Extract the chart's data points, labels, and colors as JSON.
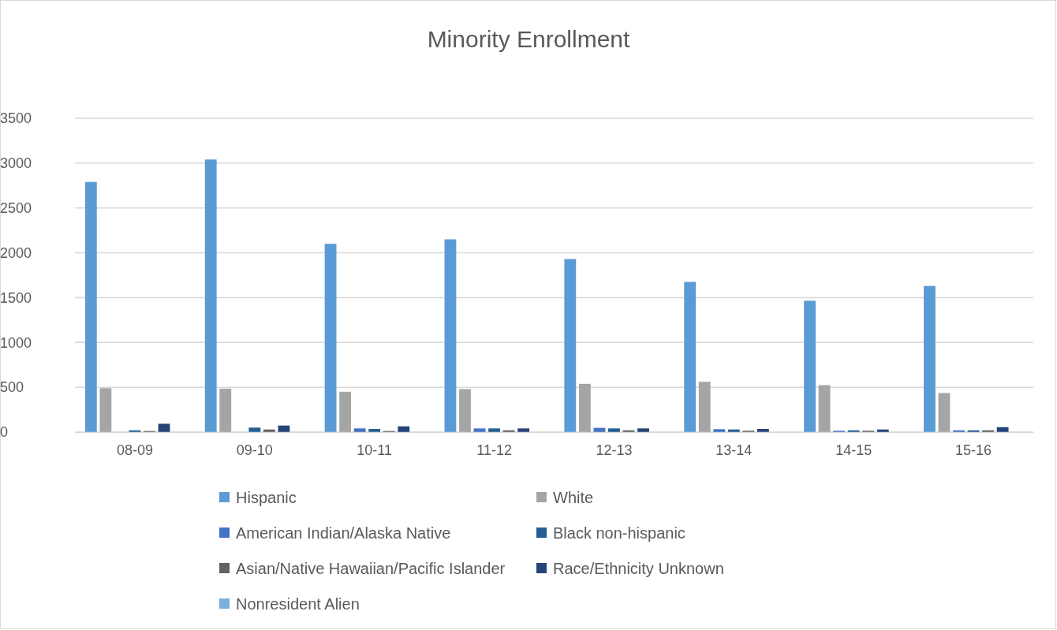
{
  "chart_data": {
    "type": "bar",
    "title": "Minority Enrollment",
    "categories": [
      "08-09",
      "09-10",
      "10-11",
      "11-12",
      "12-13",
      "13-14",
      "14-15",
      "15-16"
    ],
    "series": [
      {
        "name": "Hispanic",
        "color": "#5b9bd5",
        "values": [
          2790,
          3040,
          2100,
          2150,
          1930,
          1675,
          1465,
          1630
        ]
      },
      {
        "name": "White",
        "color": "#a5a5a5",
        "values": [
          490,
          485,
          450,
          480,
          538,
          561,
          524,
          436
        ]
      },
      {
        "name": "American Indian/Alaska Native",
        "color": "#4472c4",
        "values": [
          0,
          0,
          41,
          41,
          47,
          32,
          15,
          20
        ]
      },
      {
        "name": "Black non-hispanic",
        "color": "#255e91",
        "values": [
          20,
          50,
          35,
          41,
          41,
          29,
          20,
          20
        ]
      },
      {
        "name": "Asian/Native Hawaiian/Pacific Islander",
        "color": "#636363",
        "values": [
          12,
          29,
          12,
          20,
          20,
          15,
          15,
          20
        ]
      },
      {
        "name": "Race/Ethnicity Unknown",
        "color": "#264478",
        "values": [
          93,
          73,
          64,
          41,
          41,
          35,
          29,
          55
        ]
      },
      {
        "name": "Nonresident Alien",
        "color": "#7cafdd",
        "values": [
          0,
          0,
          0,
          0,
          0,
          0,
          0,
          0
        ]
      }
    ],
    "ylim": [
      0,
      3500
    ],
    "yticks": [
      0,
      500,
      1000,
      1500,
      2000,
      2500,
      3000,
      3500
    ],
    "grid": "y",
    "legend": "bottom"
  }
}
